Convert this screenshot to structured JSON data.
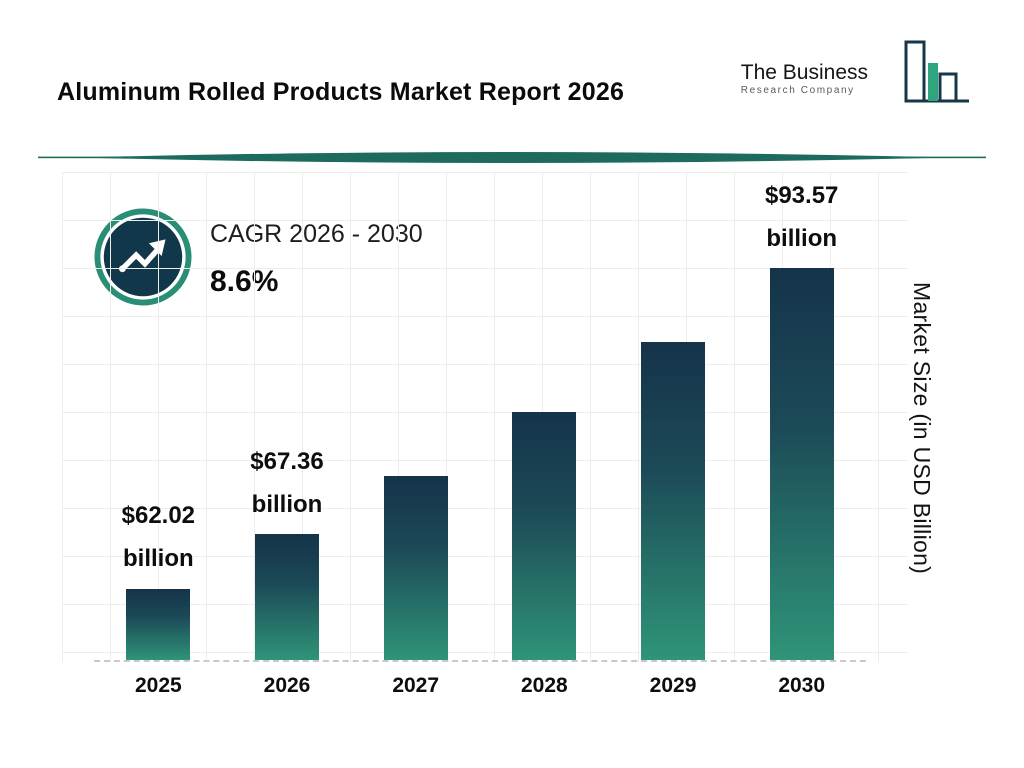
{
  "header": {
    "title": "Aluminum Rolled Products Market Report 2026",
    "logo": {
      "line1": "The Business",
      "line2": "Research Company"
    }
  },
  "cagr": {
    "label": "CAGR 2026 - 2030",
    "value": "8.6%"
  },
  "chart_data": {
    "type": "bar",
    "title": "Aluminum Rolled Products Market Report 2026",
    "categories": [
      "2025",
      "2026",
      "2027",
      "2028",
      "2029",
      "2030"
    ],
    "values": [
      62.02,
      67.36,
      73.15,
      79.44,
      86.27,
      93.57
    ],
    "value_labels": [
      "$62.02 billion",
      "$67.36 billion",
      null,
      null,
      null,
      "$93.57 billion"
    ],
    "xlabel": "",
    "ylabel": "Market Size (in USD Billion)",
    "ylim": [
      55,
      103
    ],
    "grid": true,
    "legend": "none",
    "bar_gradient": {
      "top": "#15334a",
      "bottom": "#2f9478"
    }
  },
  "colors": {
    "navy": "#14374a",
    "teal": "#2a8e76",
    "divider_teal": "#1d6b5c",
    "logo_green": "#2fa57f",
    "grid": "#ededed"
  }
}
